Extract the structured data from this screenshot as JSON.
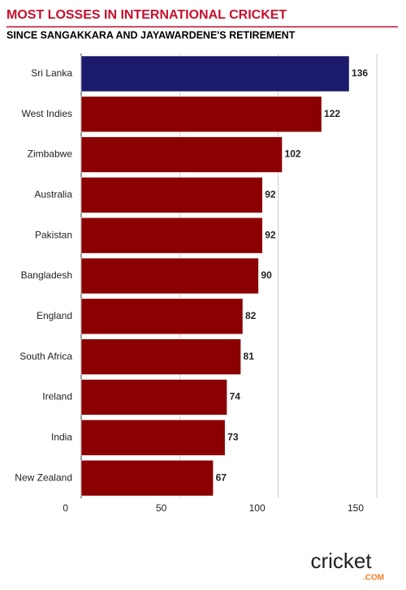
{
  "chart_data": {
    "type": "hbar",
    "title": "MOST LOSSES IN INTERNATIONAL CRICKET",
    "subtitle": "SINCE SANGAKKARA AND JAYAWARDENE'S RETIREMENT",
    "categories": [
      "Sri Lanka",
      "West Indies",
      "Zimbabwe",
      "Australia",
      "Pakistan",
      "Bangladesh",
      "England",
      "South Africa",
      "Ireland",
      "India",
      "New Zealand"
    ],
    "values": [
      136,
      122,
      102,
      92,
      92,
      90,
      82,
      81,
      74,
      73,
      67
    ],
    "colors": [
      "#1c1a6b",
      "#8b0000",
      "#8b0000",
      "#8b0000",
      "#8b0000",
      "#8b0000",
      "#8b0000",
      "#8b0000",
      "#8b0000",
      "#8b0000",
      "#8b0000"
    ],
    "xlim": [
      0,
      150
    ],
    "xticks": [
      0,
      50,
      100,
      150
    ],
    "grid": true,
    "logo": {
      "name": "cricket",
      "suffix": ".COM"
    }
  }
}
